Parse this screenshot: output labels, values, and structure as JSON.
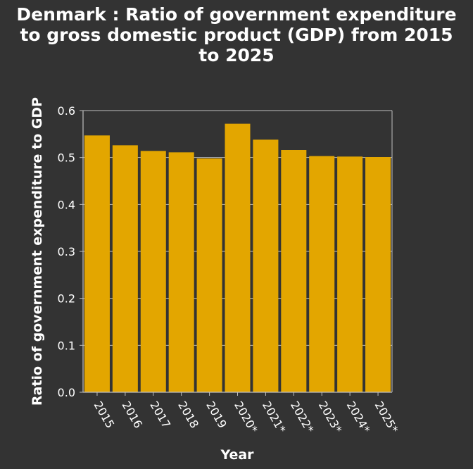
{
  "chart_data": {
    "type": "bar",
    "title": "Denmark : Ratio of government expenditure to gross domestic product (GDP) from 2015 to 2025",
    "title_lines": [
      "Denmark : Ratio of government expenditure",
      "to gross domestic product (GDP) from 2015",
      "to 2025"
    ],
    "xlabel": "Year",
    "ylabel": "Ratio of government expenditure to GDP",
    "categories": [
      "2015",
      "2016",
      "2017",
      "2018",
      "2019",
      "2020*",
      "2021*",
      "2022*",
      "2023*",
      "2024*",
      "2025*"
    ],
    "values": [
      0.547,
      0.526,
      0.514,
      0.511,
      0.498,
      0.572,
      0.538,
      0.516,
      0.503,
      0.502,
      0.501
    ],
    "ylim": [
      0,
      0.6
    ],
    "yticks": [
      "0.0",
      "0.1",
      "0.2",
      "0.3",
      "0.4",
      "0.5",
      "0.6"
    ],
    "grid": true,
    "colors": {
      "bar": "#e3a600",
      "background": "#333333",
      "grid": "#bfbfbf",
      "text": "#ffffff"
    }
  }
}
